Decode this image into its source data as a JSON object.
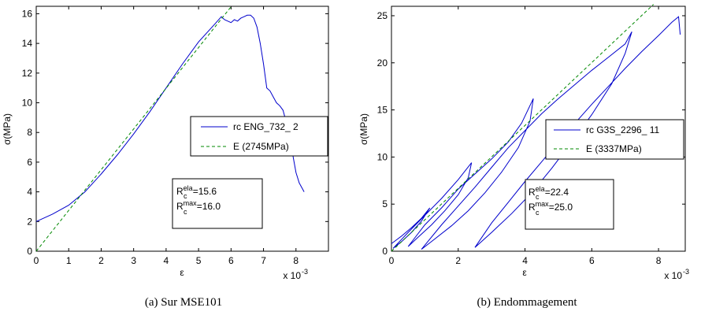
{
  "chart_data": [
    {
      "type": "line",
      "caption": "(a)  Sur MSE101",
      "xlabel": "ε",
      "ylabel": "σ(MPa)",
      "x_exponent": "x 10",
      "x_exponent_power": "-3",
      "xlim": [
        0,
        9
      ],
      "ylim": [
        0,
        16.5
      ],
      "xticks": [
        0,
        1,
        2,
        3,
        4,
        5,
        6,
        7,
        8
      ],
      "yticks": [
        0,
        2,
        4,
        6,
        8,
        10,
        12,
        14,
        16
      ],
      "grid": false,
      "legend_placement": "right-middle",
      "series": [
        {
          "name": "rc ENG_732_ 2",
          "color": "#0000cc",
          "style": "solid",
          "x": [
            0,
            0.5,
            1,
            1.5,
            2,
            2.5,
            3,
            3.5,
            4,
            4.5,
            5,
            5.5,
            5.7,
            5.8,
            5.9,
            6.0,
            6.1,
            6.2,
            6.3,
            6.4,
            6.5,
            6.6,
            6.7,
            6.8,
            6.9,
            7.0,
            7.1,
            7.2,
            7.3,
            7.4,
            7.5,
            7.6,
            7.7,
            7.8,
            7.9,
            8.0,
            8.1,
            8.2,
            8.25
          ],
          "y": [
            2.0,
            2.5,
            3.1,
            4.0,
            5.2,
            6.5,
            7.9,
            9.4,
            11.0,
            12.6,
            14.1,
            15.3,
            15.8,
            15.6,
            15.5,
            15.4,
            15.6,
            15.5,
            15.7,
            15.8,
            15.9,
            15.9,
            15.7,
            15.1,
            14.0,
            12.6,
            11.0,
            10.8,
            10.4,
            10.0,
            9.8,
            9.5,
            8.7,
            7.6,
            6.5,
            5.3,
            4.6,
            4.2,
            4.0
          ]
        },
        {
          "name": "E (2745MPa)",
          "color": "#008800",
          "style": "dashed",
          "x": [
            0,
            6.0
          ],
          "y": [
            0,
            16.47
          ]
        }
      ],
      "annotation": [
        {
          "base": "R",
          "sup": "ela",
          "sub": "c",
          "value": "=15.6"
        },
        {
          "base": "R",
          "sup": "max",
          "sub": "c",
          "value": "=16.0"
        }
      ]
    },
    {
      "type": "line",
      "caption": "(b)  Endommagement",
      "xlabel": "ε",
      "ylabel": "σ(MPa)",
      "x_exponent": "x 10",
      "x_exponent_power": "-3",
      "xlim": [
        0,
        8.8
      ],
      "ylim": [
        0,
        26
      ],
      "xticks": [
        0,
        2,
        4,
        6,
        8
      ],
      "yticks": [
        0,
        5,
        10,
        15,
        20,
        25
      ],
      "grid": false,
      "legend_placement": "right-middle",
      "series": [
        {
          "name": "rc G3S_2296_ 11",
          "color": "#0000cc",
          "style": "solid",
          "x": [
            0,
            0.3,
            0.6,
            0.9,
            1.15,
            0.9,
            0.6,
            0.3,
            0.05,
            0.5,
            1.0,
            1.5,
            2.0,
            2.4,
            2.3,
            2.0,
            1.6,
            1.2,
            0.8,
            0.5,
            1.0,
            1.5,
            2.0,
            2.5,
            3.0,
            3.5,
            3.9,
            4.25,
            4.15,
            3.8,
            3.3,
            2.8,
            2.3,
            1.8,
            1.3,
            0.9,
            1.5,
            2.0,
            2.5,
            3.0,
            3.5,
            4.0,
            4.5,
            5.0,
            5.5,
            6.0,
            6.5,
            7.0,
            7.2,
            7.0,
            6.6,
            6.0,
            5.4,
            4.8,
            4.2,
            3.6,
            3.0,
            2.5,
            3.0,
            3.5,
            4.0,
            4.5,
            5.0,
            5.5,
            6.0,
            6.5,
            7.0,
            7.5,
            8.0,
            8.4,
            8.6,
            8.65
          ],
          "y": [
            0.8,
            1.6,
            2.5,
            3.5,
            4.6,
            3.2,
            2.0,
            1.0,
            0.3,
            2.0,
            3.8,
            5.6,
            7.6,
            9.4,
            7.8,
            6.0,
            4.3,
            2.8,
            1.5,
            0.5,
            2.8,
            4.6,
            6.6,
            8.2,
            9.8,
            11.6,
            13.6,
            16.2,
            13.8,
            11.0,
            8.4,
            6.2,
            4.3,
            2.7,
            1.3,
            0.2,
            2.8,
            4.8,
            6.8,
            8.9,
            11.0,
            12.8,
            14.6,
            16.2,
            17.7,
            19.2,
            20.6,
            22.0,
            23.3,
            21.0,
            17.8,
            14.5,
            11.6,
            8.8,
            6.2,
            4.0,
            2.0,
            0.4,
            3.0,
            5.2,
            7.4,
            9.5,
            11.6,
            13.6,
            15.6,
            17.5,
            19.4,
            21.2,
            22.9,
            24.3,
            24.9,
            23.0
          ]
        },
        {
          "name": "E (3337MPa)",
          "color": "#008800",
          "style": "dashed",
          "x": [
            0,
            7.85
          ],
          "y": [
            0,
            26.2
          ]
        }
      ],
      "annotation": [
        {
          "base": "R",
          "sup": "ela",
          "sub": "c",
          "value": "=22.4"
        },
        {
          "base": "R",
          "sup": "max",
          "sub": "c",
          "value": "=25.0"
        }
      ]
    }
  ]
}
